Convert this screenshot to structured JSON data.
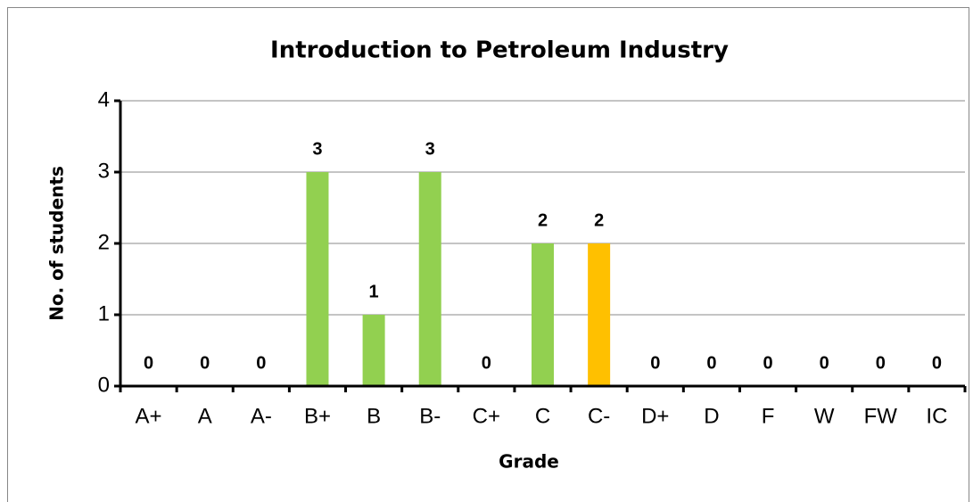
{
  "chart_data": {
    "type": "bar",
    "title": "Introduction to Petroleum Industry",
    "xlabel": "Grade",
    "ylabel": "No. of students",
    "categories": [
      "A+",
      "A",
      "A-",
      "B+",
      "B",
      "B-",
      "C+",
      "C",
      "C-",
      "D+",
      "D",
      "F",
      "W",
      "FW",
      "IC"
    ],
    "values": [
      0,
      0,
      0,
      3,
      1,
      3,
      0,
      2,
      2,
      0,
      0,
      0,
      0,
      0,
      0
    ],
    "colors": [
      "#92d050",
      "#92d050",
      "#92d050",
      "#92d050",
      "#92d050",
      "#92d050",
      "#92d050",
      "#92d050",
      "#ffc000",
      "#92d050",
      "#92d050",
      "#92d050",
      "#92d050",
      "#92d050",
      "#92d050"
    ],
    "ylim": [
      0,
      4
    ],
    "yticks": [
      0,
      1,
      2,
      3,
      4
    ],
    "grid": true
  }
}
